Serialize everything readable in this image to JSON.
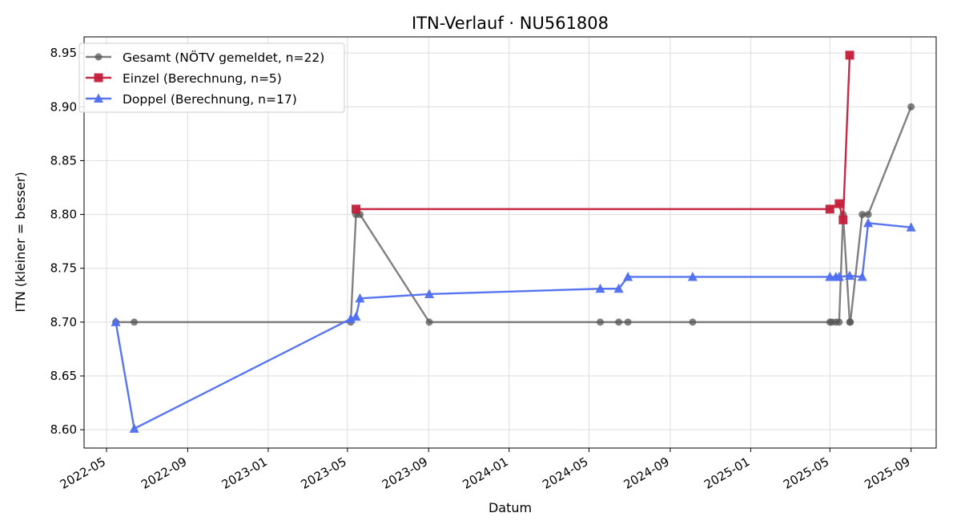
{
  "chart_data": {
    "type": "line",
    "title": "ITN-Verlauf · NU561808",
    "xlabel": "Datum",
    "ylabel": "ITN  (kleiner = besser)",
    "x_tick_labels": [
      "2022-05",
      "2022-09",
      "2023-01",
      "2023-05",
      "2023-09",
      "2024-01",
      "2024-05",
      "2024-09",
      "2025-01",
      "2025-05",
      "2025-09"
    ],
    "y_tick_labels": [
      "8.60",
      "8.65",
      "8.70",
      "8.75",
      "8.80",
      "8.85",
      "8.90",
      "8.95"
    ],
    "y_ticks": [
      8.6,
      8.65,
      8.7,
      8.75,
      8.8,
      8.85,
      8.9,
      8.95
    ],
    "xlim": [
      "2022-03-28",
      "2025-10-09"
    ],
    "ylim": [
      8.583,
      8.965
    ],
    "grid": true,
    "legend_position": "top-left",
    "series": [
      {
        "name": "Gesamt (NÖTV gemeldet, n=22)",
        "color": "#555555",
        "marker": "circle",
        "points": [
          [
            "2022-05-15",
            8.7
          ],
          [
            "2022-06-12",
            8.7
          ],
          [
            "2023-05-06",
            8.7
          ],
          [
            "2023-05-14",
            8.8
          ],
          [
            "2023-05-20",
            8.8
          ],
          [
            "2023-09-02",
            8.7
          ],
          [
            "2024-05-18",
            8.7
          ],
          [
            "2024-06-15",
            8.7
          ],
          [
            "2024-06-29",
            8.7
          ],
          [
            "2024-10-05",
            8.7
          ],
          [
            "2025-05-01",
            8.7
          ],
          [
            "2025-05-04",
            8.7
          ],
          [
            "2025-05-10",
            8.7
          ],
          [
            "2025-05-15",
            8.7
          ],
          [
            "2025-05-21",
            8.8
          ],
          [
            "2025-05-31",
            8.7
          ],
          [
            "2025-06-01",
            8.7
          ],
          [
            "2025-06-19",
            8.8
          ],
          [
            "2025-06-28",
            8.8
          ],
          [
            "2025-09-01",
            8.9
          ]
        ]
      },
      {
        "name": "Einzel (Berechnung, n=5)",
        "color": "#c41e3a",
        "marker": "square",
        "points": [
          [
            "2023-05-14",
            8.805
          ],
          [
            "2025-05-01",
            8.805
          ],
          [
            "2025-05-15",
            8.81
          ],
          [
            "2025-05-21",
            8.795
          ],
          [
            "2025-05-31",
            8.948
          ]
        ]
      },
      {
        "name": "Doppel (Berechnung, n=17)",
        "color": "#4f6ef0",
        "marker": "triangle",
        "points": [
          [
            "2022-05-15",
            8.7
          ],
          [
            "2022-06-12",
            8.601
          ],
          [
            "2023-05-06",
            8.703
          ],
          [
            "2023-05-14",
            8.705
          ],
          [
            "2023-05-20",
            8.722
          ],
          [
            "2023-09-02",
            8.726
          ],
          [
            "2024-05-18",
            8.731
          ],
          [
            "2024-06-15",
            8.731
          ],
          [
            "2024-06-29",
            8.742
          ],
          [
            "2024-10-05",
            8.742
          ],
          [
            "2025-05-01",
            8.742
          ],
          [
            "2025-05-10",
            8.742
          ],
          [
            "2025-05-15",
            8.742
          ],
          [
            "2025-05-31",
            8.743
          ],
          [
            "2025-06-19",
            8.742
          ],
          [
            "2025-06-28",
            8.792
          ],
          [
            "2025-09-01",
            8.788
          ]
        ]
      }
    ]
  }
}
